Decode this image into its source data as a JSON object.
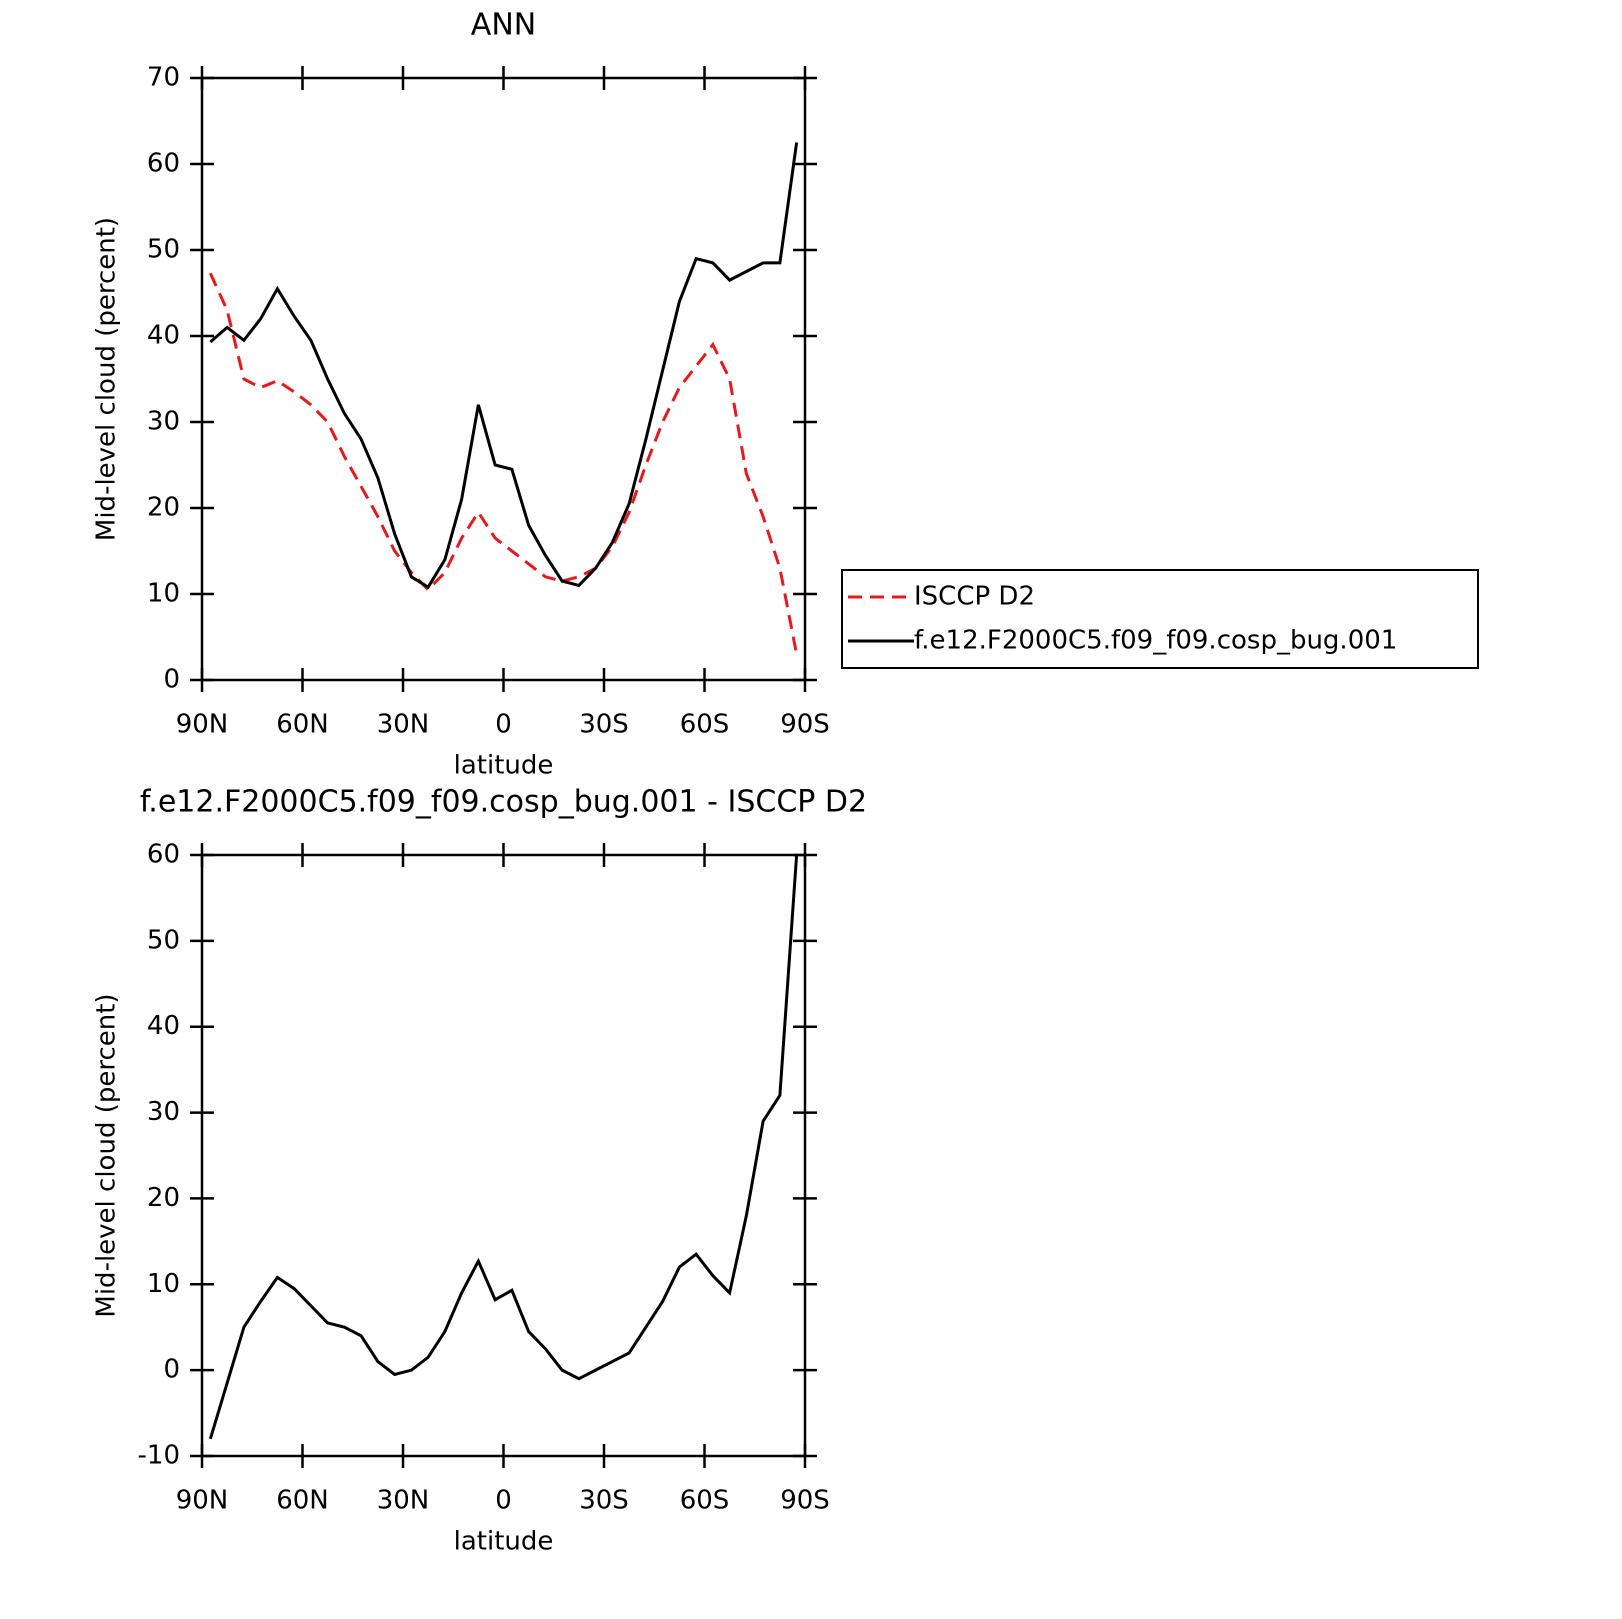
{
  "chart_data": [
    {
      "type": "line",
      "title": "ANN",
      "xlabel": "latitude",
      "ylabel": "Mid-level cloud (percent)",
      "x": [
        87.5,
        82.5,
        77.5,
        72.5,
        67.5,
        62.5,
        57.5,
        52.5,
        47.5,
        42.5,
        37.5,
        32.5,
        27.5,
        22.5,
        17.5,
        12.5,
        7.5,
        2.5,
        -2.5,
        -7.5,
        -12.5,
        -17.5,
        -22.5,
        -27.5,
        -32.5,
        -37.5,
        -42.5,
        -47.5,
        -52.5,
        -57.5,
        -62.5,
        -67.5,
        -72.5,
        -77.5,
        -82.5,
        -87.5
      ],
      "series": [
        {
          "name": "ISCCP D2",
          "color": "#e41a1c",
          "dash": true,
          "values": [
            47.3,
            43,
            35,
            34,
            34.8,
            33.5,
            32,
            30,
            26,
            22.5,
            19,
            15,
            12.5,
            10.5,
            12.5,
            16.5,
            19.5,
            16.5,
            15,
            13.5,
            12,
            11.5,
            12,
            13,
            15.5,
            19.5,
            25,
            30,
            34,
            36.5,
            39,
            35,
            24,
            19,
            13,
            3
          ]
        },
        {
          "name": "f.e12.F2000C5.f09_f09.cosp_bug.001",
          "color": "#000000",
          "dash": false,
          "values": [
            39.3,
            41,
            39.5,
            42,
            45.5,
            42.3,
            39.5,
            35,
            31,
            28,
            23.5,
            17,
            12,
            10.8,
            14,
            21,
            32,
            25,
            24.5,
            18,
            14.5,
            11.5,
            11,
            13,
            16,
            20.5,
            28,
            36,
            44,
            49,
            48.5,
            46.5,
            47.5,
            48.5,
            48.5,
            62.5
          ]
        }
      ],
      "xlim": [
        90,
        -90
      ],
      "xticks": [
        {
          "value": 90,
          "label": "90N"
        },
        {
          "value": 60,
          "label": "60N"
        },
        {
          "value": 30,
          "label": "30N"
        },
        0,
        {
          "value": -30,
          "label": "30S"
        },
        {
          "value": -60,
          "label": "60S"
        },
        {
          "value": -90,
          "label": "90S"
        }
      ],
      "ylim": [
        0,
        70
      ],
      "yticks": [
        0,
        10,
        20,
        30,
        40,
        50,
        60,
        70
      ],
      "legend": "right"
    },
    {
      "type": "line",
      "title": "f.e12.F2000C5.f09_f09.cosp_bug.001 - ISCCP D2",
      "xlabel": "latitude",
      "ylabel": "Mid-level cloud (percent)",
      "x": [
        87.5,
        82.5,
        77.5,
        72.5,
        67.5,
        62.5,
        57.5,
        52.5,
        47.5,
        42.5,
        37.5,
        32.5,
        27.5,
        22.5,
        17.5,
        12.5,
        7.5,
        2.5,
        -2.5,
        -7.5,
        -12.5,
        -17.5,
        -22.5,
        -27.5,
        -32.5,
        -37.5,
        -42.5,
        -47.5,
        -52.5,
        -57.5,
        -62.5,
        -67.5,
        -72.5,
        -77.5,
        -82.5,
        -87.5
      ],
      "values": [
        -8,
        -1.5,
        5,
        8,
        10.8,
        9.5,
        7.5,
        5.5,
        5,
        4,
        1,
        -0.5,
        0,
        1.5,
        4.5,
        9,
        12.7,
        8.2,
        9.3,
        4.5,
        2.5,
        0,
        -1,
        0,
        1,
        2,
        5,
        8,
        12,
        13.5,
        11,
        9,
        18,
        29,
        32,
        60
      ],
      "color": "#000000",
      "xlim": [
        90,
        -90
      ],
      "xticks": [
        {
          "value": 90,
          "label": "90N"
        },
        {
          "value": 60,
          "label": "60N"
        },
        {
          "value": 30,
          "label": "30N"
        },
        0,
        {
          "value": -30,
          "label": "30S"
        },
        {
          "value": -60,
          "label": "60S"
        },
        {
          "value": -90,
          "label": "90S"
        }
      ],
      "ylim": [
        -10,
        60
      ],
      "yticks": [
        -10,
        0,
        10,
        20,
        30,
        40,
        50,
        60
      ]
    }
  ]
}
